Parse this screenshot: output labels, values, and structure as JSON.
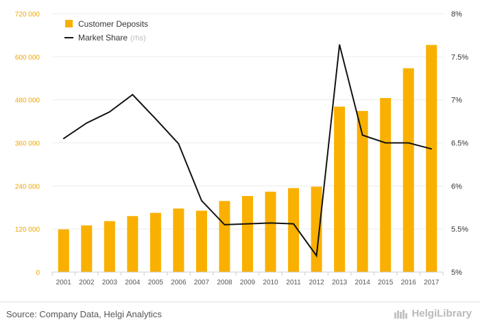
{
  "chart_data": {
    "type": "bar+line",
    "categories": [
      "2001",
      "2002",
      "2003",
      "2004",
      "2005",
      "2006",
      "2007",
      "2008",
      "2009",
      "2010",
      "2011",
      "2012",
      "2013",
      "2014",
      "2015",
      "2016",
      "2017"
    ],
    "series": [
      {
        "name": "Customer Deposits",
        "type": "bar",
        "axis": "left",
        "color": "#f9b000",
        "values": [
          119000,
          130000,
          142000,
          156000,
          165000,
          177000,
          171000,
          198000,
          212000,
          224000,
          234000,
          238000,
          461000,
          449000,
          485000,
          568000,
          633000
        ]
      },
      {
        "name": "Market Share",
        "type": "line",
        "axis": "right",
        "color": "#111111",
        "values": [
          6.55,
          6.73,
          6.86,
          7.06,
          6.78,
          6.49,
          5.83,
          5.55,
          5.56,
          5.57,
          5.56,
          5.19,
          7.64,
          6.59,
          6.5,
          6.5,
          6.43
        ]
      }
    ],
    "left_axis": {
      "min": 0,
      "max": 720000,
      "ticks": [
        0,
        120000,
        240000,
        360000,
        480000,
        600000,
        720000
      ],
      "tick_labels": [
        "0",
        "120 000",
        "240 000",
        "360 000",
        "480 000",
        "600 000",
        "720 000"
      ]
    },
    "right_axis": {
      "min": 5,
      "max": 8,
      "ticks": [
        5,
        5.5,
        6,
        6.5,
        7,
        7.5,
        8
      ],
      "tick_labels": [
        "5%",
        "5.5%",
        "6%",
        "6.5%",
        "7%",
        "7.5%",
        "8%"
      ]
    },
    "legend": [
      {
        "label": "Customer Deposits",
        "suffix": ""
      },
      {
        "label": "Market Share",
        "suffix": "(rhs)"
      }
    ],
    "legend_position": "top-left",
    "grid": true
  },
  "footer": {
    "source": "Source: Company Data, Helgi Analytics",
    "brand": "HelgiLibrary"
  }
}
